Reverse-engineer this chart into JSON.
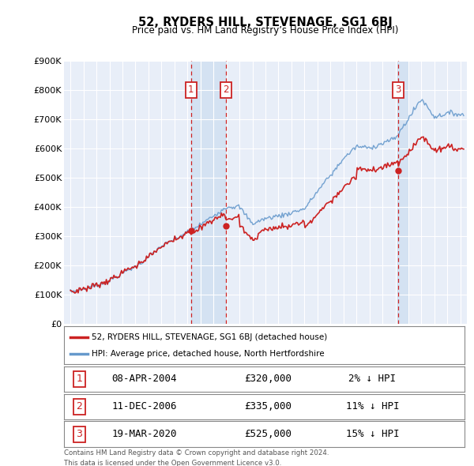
{
  "title": "52, RYDERS HILL, STEVENAGE, SG1 6BJ",
  "subtitle": "Price paid vs. HM Land Registry’s House Price Index (HPI)",
  "ylabel_values": [
    "£0",
    "£100K",
    "£200K",
    "£300K",
    "£400K",
    "£500K",
    "£600K",
    "£700K",
    "£800K",
    "£900K"
  ],
  "ylim": [
    0,
    900000
  ],
  "xlim_start": 1994.5,
  "xlim_end": 2025.5,
  "hpi_color": "#6699cc",
  "hpi_fill_color": "#d0e0f0",
  "price_color": "#cc2222",
  "marker_box_color": "#cc2222",
  "bg_color": "#ffffff",
  "plot_bg_color": "#e8eef8",
  "grid_color": "#ffffff",
  "shade_color": "#ccddf0",
  "legend_label_price": "52, RYDERS HILL, STEVENAGE, SG1 6BJ (detached house)",
  "legend_label_hpi": "HPI: Average price, detached house, North Hertfordshire",
  "transactions": [
    {
      "num": 1,
      "date": "08-APR-2004",
      "price": 320000,
      "pct": "2%",
      "direction": "↓",
      "x": 2004.27
    },
    {
      "num": 2,
      "date": "11-DEC-2006",
      "price": 335000,
      "pct": "11%",
      "direction": "↓",
      "x": 2006.94
    },
    {
      "num": 3,
      "date": "19-MAR-2020",
      "price": 525000,
      "pct": "15%",
      "direction": "↓",
      "x": 2020.21
    }
  ],
  "tr_prices": {
    "1": 320000,
    "2": 335000,
    "3": 525000
  },
  "footer_line1": "Contains HM Land Registry data © Crown copyright and database right 2024.",
  "footer_line2": "This data is licensed under the Open Government Licence v3.0."
}
